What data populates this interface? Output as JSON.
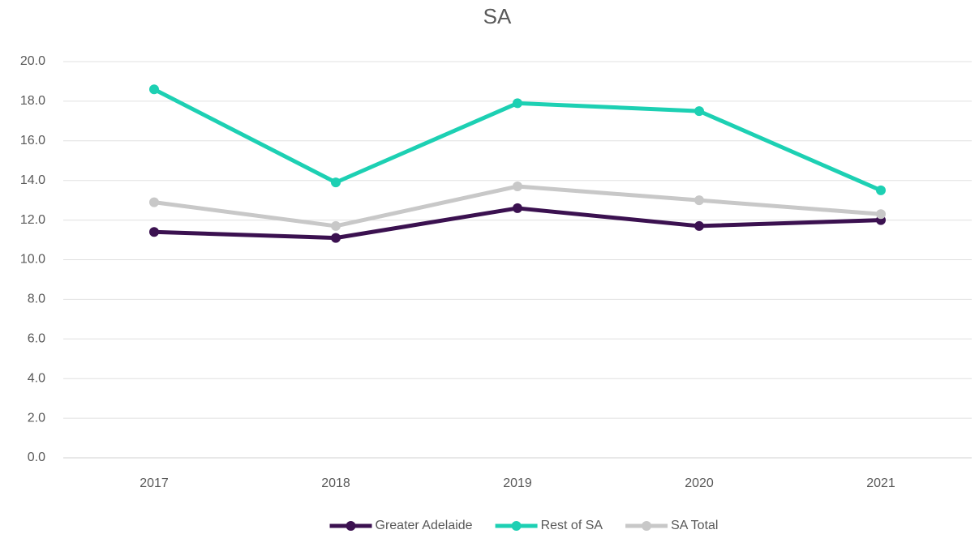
{
  "chart_data": {
    "type": "line",
    "title": "SA",
    "categories": [
      "2017",
      "2018",
      "2019",
      "2020",
      "2021"
    ],
    "series": [
      {
        "name": "Greater Adelaide",
        "color": "#3b1150",
        "values": [
          11.4,
          11.1,
          12.6,
          11.7,
          12.0
        ]
      },
      {
        "name": "Rest of SA",
        "color": "#1dd0b3",
        "values": [
          18.6,
          13.9,
          17.9,
          17.5,
          13.5
        ]
      },
      {
        "name": "SA Total",
        "color": "#c8c8c8",
        "values": [
          12.9,
          11.7,
          13.7,
          13.0,
          12.3
        ]
      }
    ],
    "ylim": [
      0,
      20
    ],
    "yticks": [
      {
        "value": 0,
        "label": "0.0"
      },
      {
        "value": 2,
        "label": "2.0"
      },
      {
        "value": 4,
        "label": "4.0"
      },
      {
        "value": 6,
        "label": "6.0"
      },
      {
        "value": 8,
        "label": "8.0"
      },
      {
        "value": 10,
        "label": "10.0"
      },
      {
        "value": 12,
        "label": "12.0"
      },
      {
        "value": 14,
        "label": "14.0"
      },
      {
        "value": 16,
        "label": "16.0"
      },
      {
        "value": 18,
        "label": "18.0"
      },
      {
        "value": 20,
        "label": "20.0"
      }
    ],
    "grid": true,
    "legend": "bottom"
  }
}
